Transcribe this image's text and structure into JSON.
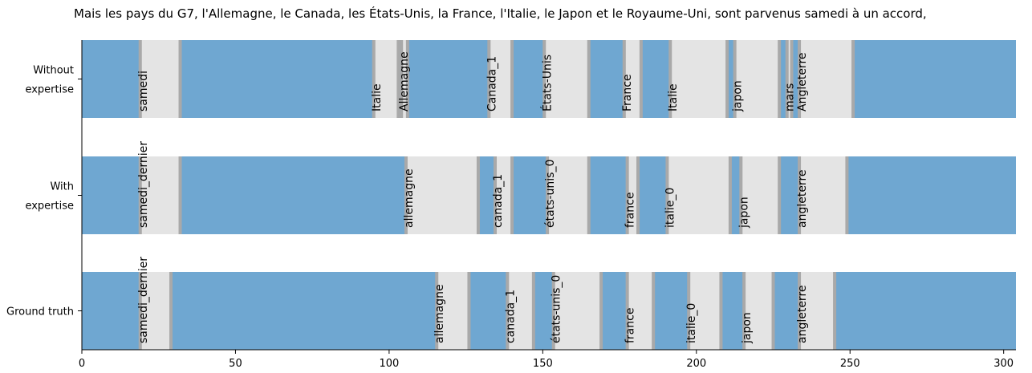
{
  "title": "Mais les pays du G7, l'Allemagne, le Canada, les États-Unis, la France, l'Italie, le Japon et le Royaume-Uni, sont parvenus samedi à un accord,",
  "chart_data": {
    "type": "timeline-segments",
    "title": "Mais les pays du G7, l'Allemagne, le Canada, les États-Unis, la France, l'Italie, le Japon et le Royaume-Uni, sont parvenus samedi à un accord,",
    "xlim": [
      0,
      304
    ],
    "xticks": [
      0,
      50,
      100,
      150,
      200,
      250,
      300
    ],
    "colors": {
      "background": "#6fa7d1",
      "segment": "#e4e4e4",
      "edge": "#a9a9a9"
    },
    "rows": [
      {
        "name_lines": [
          "Without",
          "expertise"
        ],
        "segments": [
          {
            "label": "samedi",
            "start": 19,
            "end": 32
          },
          {
            "label": "Italie",
            "start": 95,
            "end": 103
          },
          {
            "label": "Allemagne",
            "start": 104,
            "end": 106
          },
          {
            "label": "Canada_1",
            "start": 132.5,
            "end": 140
          },
          {
            "label": "États-Unis",
            "start": 150.5,
            "end": 165
          },
          {
            "label": "France",
            "start": 176.5,
            "end": 182
          },
          {
            "label": "Italie",
            "start": 191.5,
            "end": 210
          },
          {
            "label": "japon",
            "start": 212.5,
            "end": 227
          },
          {
            "label": "mars",
            "start": 229.5,
            "end": 231
          },
          {
            "label": "Angleterre",
            "start": 233.5,
            "end": 251
          }
        ]
      },
      {
        "name_lines": [
          "With",
          "expertise"
        ],
        "segments": [
          {
            "label": "samedi_dernier",
            "start": 19,
            "end": 32
          },
          {
            "label": "allemagne",
            "start": 105.5,
            "end": 129
          },
          {
            "label": "canada_1",
            "start": 134.5,
            "end": 140
          },
          {
            "label": "états-unis_0",
            "start": 151.5,
            "end": 165
          },
          {
            "label": "france",
            "start": 177.5,
            "end": 181
          },
          {
            "label": "italie_0",
            "start": 190.5,
            "end": 211
          },
          {
            "label": "japon",
            "start": 214.5,
            "end": 227
          },
          {
            "label": "angleterre",
            "start": 233.5,
            "end": 249
          }
        ]
      },
      {
        "name_lines": [
          "Ground truth"
        ],
        "segments": [
          {
            "label": "samedi_dernier",
            "start": 19,
            "end": 29
          },
          {
            "label": "allemagne",
            "start": 115.5,
            "end": 126
          },
          {
            "label": "canada_1",
            "start": 138.5,
            "end": 147
          },
          {
            "label": "états-unis_0",
            "start": 153.5,
            "end": 169
          },
          {
            "label": "france",
            "start": 177.5,
            "end": 186
          },
          {
            "label": "italie_0",
            "start": 197.5,
            "end": 208
          },
          {
            "label": "japon",
            "start": 215.5,
            "end": 225
          },
          {
            "label": "angleterre",
            "start": 233.5,
            "end": 245
          }
        ]
      }
    ]
  }
}
